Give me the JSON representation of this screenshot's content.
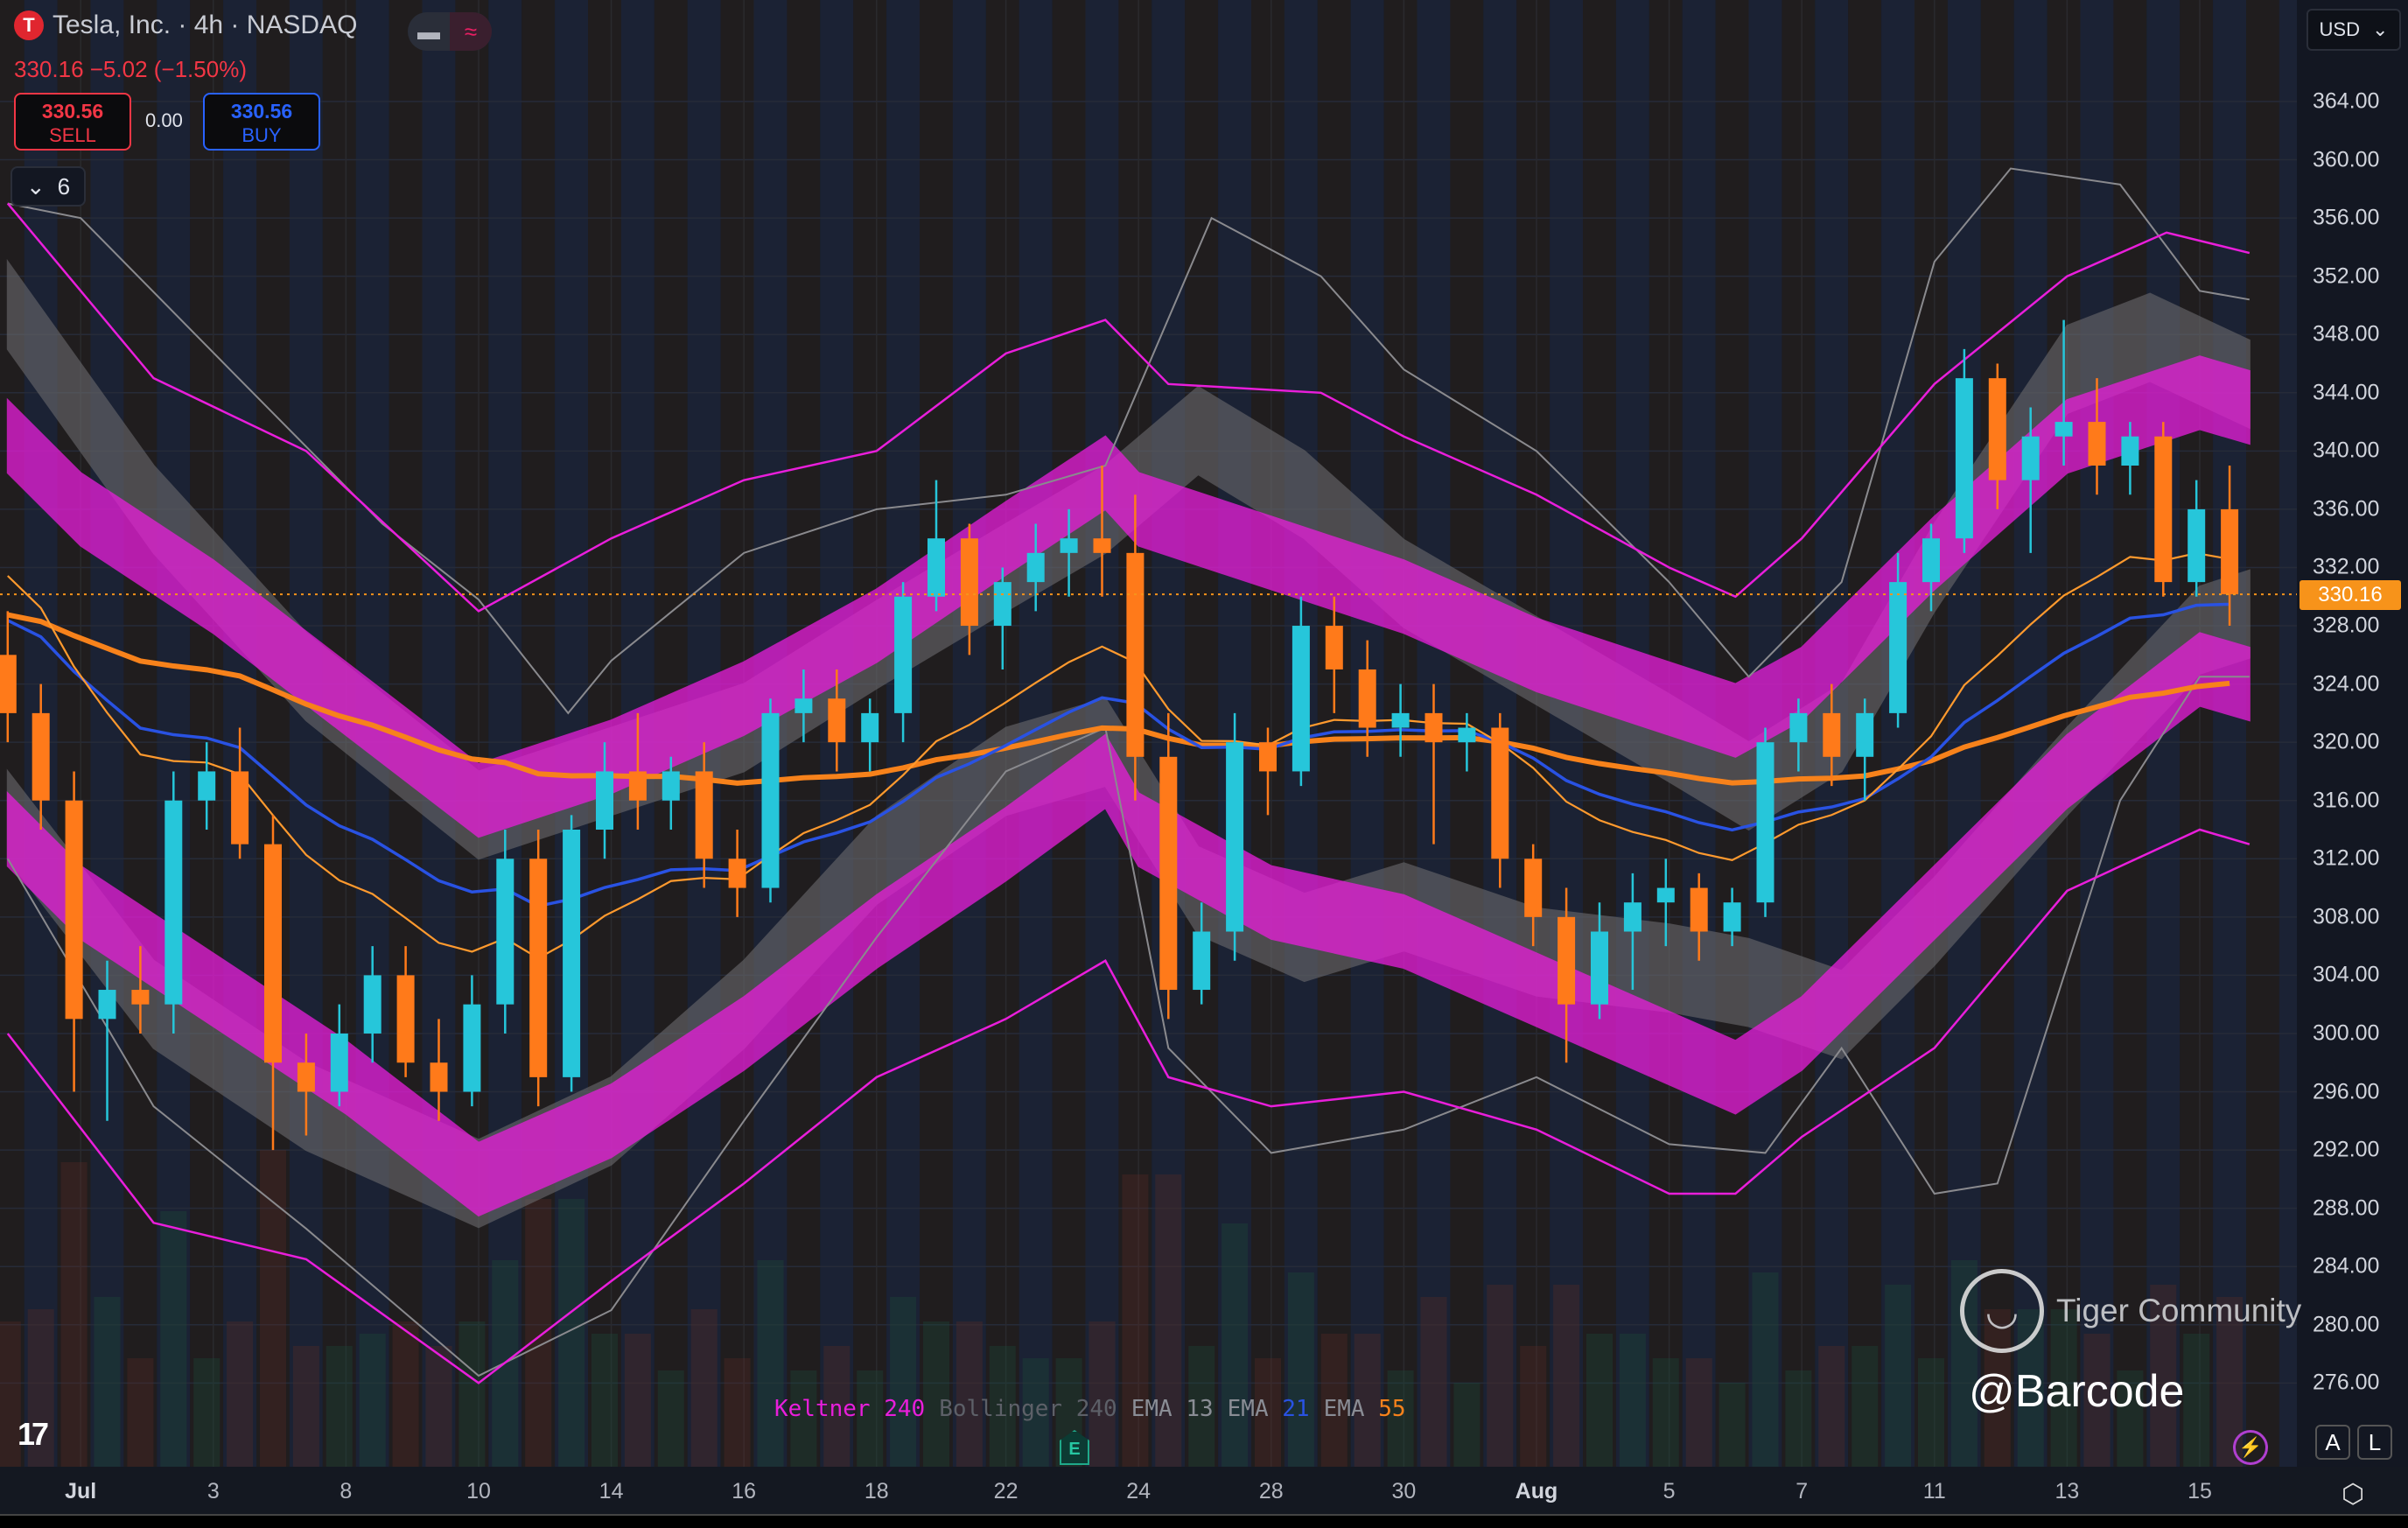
{
  "header": {
    "logo_letter": "T",
    "title": "Tesla, Inc. · 4h · NASDAQ",
    "quote": "330.16 −5.02 (−1.50%)",
    "sell_price": "330.56",
    "sell_label": "SELL",
    "spread": "0.00",
    "buy_price": "330.56",
    "buy_label": "BUY",
    "indicator_count": "6",
    "currency": "USD",
    "toggle_icons": [
      "minus-icon",
      "wave-icon"
    ]
  },
  "legend": [
    {
      "name": "Keltner",
      "param": "240",
      "name_color": "#e91edb",
      "param_color": "#e91edb"
    },
    {
      "name": "Bollinger",
      "param": "240",
      "name_color": "#5d6068",
      "param_color": "#5d6068"
    },
    {
      "name": "EMA",
      "param": "13",
      "name_color": "#8a8d95",
      "param_color": "#8a8d95"
    },
    {
      "name": "EMA",
      "param": "21",
      "name_color": "#8a8d95",
      "param_color": "#2952e3"
    },
    {
      "name": "EMA",
      "param": "55",
      "name_color": "#8a8d95",
      "param_color": "#f7821b"
    }
  ],
  "earnings_marker": "E",
  "watermark": {
    "brand": "Tiger Community",
    "user": "@Barcode"
  },
  "controls": {
    "auto": "A",
    "log": "L"
  },
  "colors": {
    "up": "#26c6da",
    "down": "#ff7a1a",
    "keltner": "#e91edb",
    "bollinger": "#6b6b6e",
    "ema13": "#ff9a2e",
    "ema21": "#2952e3",
    "ema55": "#f7821b",
    "last_price": "#f7931a"
  },
  "chart_data": {
    "type": "candlestick",
    "symbol": "TSLA",
    "interval": "4h",
    "y_ticks": [
      "364.00",
      "360.00",
      "356.00",
      "352.00",
      "348.00",
      "344.00",
      "340.00",
      "336.00",
      "332.00",
      "328.00",
      "324.00",
      "320.00",
      "316.00",
      "312.00",
      "308.00",
      "304.00",
      "300.00",
      "296.00",
      "292.00",
      "288.00",
      "284.00",
      "280.00",
      "276.00"
    ],
    "ylim": [
      274,
      367
    ],
    "x_ticks": [
      {
        "label": "Jul",
        "bar": 2.2,
        "bold": true
      },
      {
        "label": "3",
        "bar": 6.2
      },
      {
        "label": "8",
        "bar": 10.2
      },
      {
        "label": "10",
        "bar": 14.2
      },
      {
        "label": "14",
        "bar": 18.2
      },
      {
        "label": "16",
        "bar": 22.2
      },
      {
        "label": "18",
        "bar": 26.2
      },
      {
        "label": "22",
        "bar": 30.1
      },
      {
        "label": "24",
        "bar": 34.1
      },
      {
        "label": "28",
        "bar": 38.1
      },
      {
        "label": "30",
        "bar": 42.1
      },
      {
        "label": "Aug",
        "bar": 46.1,
        "bold": true
      },
      {
        "label": "5",
        "bar": 50.1
      },
      {
        "label": "7",
        "bar": 54.1
      },
      {
        "label": "11",
        "bar": 58.1
      },
      {
        "label": "13",
        "bar": 62.1
      },
      {
        "label": "15",
        "bar": 66.1
      }
    ],
    "last_price": "330.16",
    "candles_ohlc": [
      [
        326,
        329,
        320,
        322
      ],
      [
        322,
        324,
        314,
        316
      ],
      [
        316,
        318,
        296,
        301
      ],
      [
        301,
        305,
        294,
        303
      ],
      [
        303,
        306,
        300,
        302
      ],
      [
        302,
        318,
        300,
        316
      ],
      [
        316,
        320,
        314,
        318
      ],
      [
        318,
        321,
        312,
        313
      ],
      [
        313,
        315,
        292,
        298
      ],
      [
        298,
        300,
        293,
        296
      ],
      [
        296,
        302,
        295,
        300
      ],
      [
        300,
        306,
        298,
        304
      ],
      [
        304,
        306,
        297,
        298
      ],
      [
        298,
        301,
        294,
        296
      ],
      [
        296,
        304,
        295,
        302
      ],
      [
        302,
        314,
        300,
        312
      ],
      [
        312,
        314,
        295,
        297
      ],
      [
        297,
        315,
        296,
        314
      ],
      [
        314,
        320,
        312,
        318
      ],
      [
        318,
        322,
        314,
        316
      ],
      [
        316,
        319,
        314,
        318
      ],
      [
        318,
        320,
        310,
        312
      ],
      [
        312,
        314,
        308,
        310
      ],
      [
        310,
        323,
        309,
        322
      ],
      [
        322,
        325,
        320,
        323
      ],
      [
        323,
        325,
        318,
        320
      ],
      [
        320,
        323,
        318,
        322
      ],
      [
        322,
        331,
        320,
        330
      ],
      [
        330,
        338,
        329,
        334
      ],
      [
        334,
        335,
        326,
        328
      ],
      [
        328,
        332,
        325,
        331
      ],
      [
        331,
        335,
        329,
        333
      ],
      [
        333,
        336,
        330,
        334
      ],
      [
        334,
        339,
        330,
        333
      ],
      [
        333,
        337,
        316,
        319
      ],
      [
        319,
        322,
        301,
        303
      ],
      [
        303,
        309,
        302,
        307
      ],
      [
        307,
        322,
        305,
        320
      ],
      [
        320,
        321,
        315,
        318
      ],
      [
        318,
        330,
        317,
        328
      ],
      [
        328,
        330,
        322,
        325
      ],
      [
        325,
        327,
        319,
        321
      ],
      [
        321,
        324,
        319,
        322
      ],
      [
        322,
        324,
        313,
        320
      ],
      [
        320,
        322,
        318,
        321
      ],
      [
        321,
        322,
        310,
        312
      ],
      [
        312,
        313,
        306,
        308
      ],
      [
        308,
        310,
        298,
        302
      ],
      [
        302,
        309,
        301,
        307
      ],
      [
        307,
        311,
        303,
        309
      ],
      [
        309,
        312,
        306,
        310
      ],
      [
        310,
        311,
        305,
        307
      ],
      [
        307,
        310,
        306,
        309
      ],
      [
        309,
        321,
        308,
        320
      ],
      [
        320,
        323,
        318,
        322
      ],
      [
        322,
        324,
        317,
        319
      ],
      [
        319,
        323,
        316,
        322
      ],
      [
        322,
        333,
        321,
        331
      ],
      [
        331,
        335,
        329,
        334
      ],
      [
        334,
        347,
        333,
        345
      ],
      [
        345,
        346,
        336,
        338
      ],
      [
        338,
        343,
        333,
        341
      ],
      [
        341,
        349,
        339,
        342
      ],
      [
        342,
        345,
        337,
        339
      ],
      [
        339,
        342,
        337,
        341
      ],
      [
        341,
        342,
        330,
        331
      ],
      [
        331,
        338,
        330,
        336
      ],
      [
        336,
        339,
        328,
        330.16
      ]
    ],
    "keltner": {
      "band_halfwidth": 2.5,
      "upper_fill": [
        [
          0,
          341
        ],
        [
          2.2,
          336
        ],
        [
          6.2,
          330
        ],
        [
          10.2,
          323
        ],
        [
          14.2,
          316
        ],
        [
          18.2,
          319
        ],
        [
          22.2,
          323
        ],
        [
          26.2,
          328
        ],
        [
          30.1,
          334
        ],
        [
          33.1,
          338.5
        ],
        [
          34.1,
          336
        ],
        [
          38.1,
          333
        ],
        [
          42.1,
          330
        ],
        [
          46.1,
          326
        ],
        [
          50.1,
          323
        ],
        [
          52.1,
          321.5
        ],
        [
          54.1,
          324
        ],
        [
          58.1,
          333
        ],
        [
          62.1,
          341
        ],
        [
          66.1,
          344
        ],
        [
          67.6,
          343
        ]
      ],
      "lower_fill": [
        [
          0,
          314
        ],
        [
          2.2,
          309
        ],
        [
          6.2,
          303
        ],
        [
          10.2,
          297
        ],
        [
          14.2,
          290
        ],
        [
          18.2,
          294
        ],
        [
          22.2,
          300
        ],
        [
          26.2,
          307
        ],
        [
          30.1,
          313
        ],
        [
          33.1,
          318
        ],
        [
          34.1,
          314
        ],
        [
          38.1,
          309
        ],
        [
          42.1,
          307
        ],
        [
          46.1,
          303
        ],
        [
          50.1,
          299
        ],
        [
          52.1,
          297
        ],
        [
          54.1,
          300
        ],
        [
          58.1,
          309
        ],
        [
          62.1,
          318
        ],
        [
          66.1,
          325
        ],
        [
          67.6,
          324
        ]
      ],
      "upper_line": [
        [
          0,
          357
        ],
        [
          4.4,
          345
        ],
        [
          9.0,
          340
        ],
        [
          14.2,
          329
        ],
        [
          18.2,
          334
        ],
        [
          22.2,
          338
        ],
        [
          26.2,
          340
        ],
        [
          30.1,
          346.7
        ],
        [
          33.1,
          349
        ],
        [
          35,
          344.6
        ],
        [
          39.6,
          344
        ],
        [
          42.1,
          341
        ],
        [
          46.1,
          337
        ],
        [
          50.1,
          332
        ],
        [
          52.1,
          330
        ],
        [
          54.1,
          334
        ],
        [
          58.1,
          344.6
        ],
        [
          62.1,
          352
        ],
        [
          65.1,
          355
        ],
        [
          67.6,
          353.6
        ]
      ],
      "lower_line": [
        [
          0,
          300
        ],
        [
          4.4,
          287
        ],
        [
          9.0,
          284.5
        ],
        [
          14.2,
          276
        ],
        [
          18.2,
          283
        ],
        [
          22.2,
          289.7
        ],
        [
          26.2,
          297
        ],
        [
          30.1,
          301
        ],
        [
          33.1,
          305
        ],
        [
          35,
          297
        ],
        [
          38.1,
          295
        ],
        [
          42.1,
          296
        ],
        [
          46.1,
          293.4
        ],
        [
          50.1,
          289
        ],
        [
          52.1,
          289
        ],
        [
          54.1,
          292.9
        ],
        [
          58.1,
          299
        ],
        [
          62.1,
          309.8
        ],
        [
          66.1,
          314
        ],
        [
          67.6,
          313
        ]
      ]
    },
    "bollinger": {
      "band_halfwidth": 3,
      "upper_fill": [
        [
          0,
          350
        ],
        [
          4.4,
          336
        ],
        [
          9.0,
          324.5
        ],
        [
          14.2,
          315
        ],
        [
          18.2,
          318
        ],
        [
          22.2,
          321
        ],
        [
          26.2,
          326.7
        ],
        [
          30.1,
          332
        ],
        [
          33.1,
          336
        ],
        [
          35.9,
          341.4
        ],
        [
          39.1,
          337
        ],
        [
          42.1,
          330.9
        ],
        [
          46.1,
          325.6
        ],
        [
          50.1,
          320.3
        ],
        [
          52.5,
          317
        ],
        [
          55.3,
          321
        ],
        [
          58.1,
          332
        ],
        [
          62.1,
          345.6
        ],
        [
          64.6,
          347.8
        ],
        [
          67.6,
          344.6
        ]
      ],
      "lower_fill": [
        [
          0,
          315
        ],
        [
          4.4,
          302
        ],
        [
          9.0,
          295
        ],
        [
          14.2,
          289.7
        ],
        [
          18.2,
          294
        ],
        [
          22.2,
          302
        ],
        [
          26.2,
          311.9
        ],
        [
          30.1,
          318
        ],
        [
          33.1,
          320
        ],
        [
          35.9,
          309.8
        ],
        [
          39.1,
          306.6
        ],
        [
          42.1,
          308.7
        ],
        [
          46.1,
          305.6
        ],
        [
          50.1,
          304.5
        ],
        [
          52.5,
          303.5
        ],
        [
          55.3,
          301.3
        ],
        [
          58.1,
          307.7
        ],
        [
          62.1,
          318
        ],
        [
          66.1,
          327.7
        ],
        [
          67.6,
          328.8
        ]
      ],
      "upper_line": [
        [
          0,
          357
        ],
        [
          2.2,
          356
        ],
        [
          6.7,
          345.6
        ],
        [
          11.3,
          335
        ],
        [
          14.2,
          329.8
        ],
        [
          16.9,
          322
        ],
        [
          18.2,
          325.6
        ],
        [
          22.2,
          333
        ],
        [
          26.2,
          336
        ],
        [
          30.1,
          337
        ],
        [
          33.1,
          339
        ],
        [
          36.3,
          356
        ],
        [
          39.6,
          352
        ],
        [
          42.1,
          345.6
        ],
        [
          46.1,
          340
        ],
        [
          50.1,
          331
        ],
        [
          52.5,
          324.5
        ],
        [
          55.3,
          331
        ],
        [
          58.1,
          353
        ],
        [
          60.4,
          359.4
        ],
        [
          63.7,
          358.3
        ],
        [
          66.1,
          351
        ],
        [
          67.6,
          350.4
        ]
      ],
      "lower_line": [
        [
          0,
          312
        ],
        [
          4.4,
          295
        ],
        [
          9.0,
          286.6
        ],
        [
          14.2,
          276.5
        ],
        [
          18.2,
          281
        ],
        [
          22.2,
          294
        ],
        [
          26.2,
          306.6
        ],
        [
          30.1,
          318
        ],
        [
          33.1,
          321
        ],
        [
          35,
          299
        ],
        [
          38.1,
          291.8
        ],
        [
          42.1,
          293.4
        ],
        [
          46.1,
          297
        ],
        [
          50.1,
          292.4
        ],
        [
          53,
          291.8
        ],
        [
          55.3,
          299
        ],
        [
          58.1,
          289
        ],
        [
          60,
          289.7
        ],
        [
          63.7,
          316
        ],
        [
          66.1,
          324.5
        ],
        [
          67.6,
          324.5
        ]
      ]
    }
  }
}
